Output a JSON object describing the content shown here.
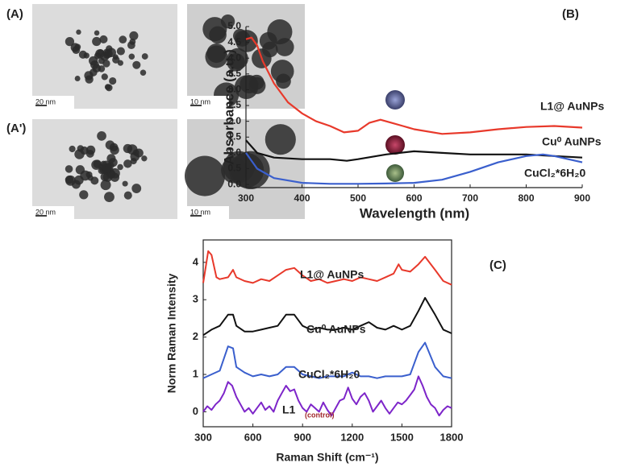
{
  "figure": {
    "labels": [
      "(A)",
      "(A')"
    ],
    "scale_bars": [
      "20 nm",
      "10 nm",
      "20 nm",
      "10 nm"
    ]
  },
  "chart_data": [
    {
      "type": "line",
      "panel_label": "(B)",
      "xlabel": "Wavelength (nm)",
      "ylabel": "Absorbance (a.u.)",
      "xlim": [
        300,
        900
      ],
      "ylim": [
        -0.1,
        5.0
      ],
      "xticks": [
        300,
        400,
        500,
        600,
        700,
        800,
        900
      ],
      "yticks": [
        {
          "value": 0,
          "label": "0.0"
        },
        {
          "value": 0.5,
          "label": "0.5"
        },
        {
          "value": 1,
          "label": "1.0"
        },
        {
          "value": 1.5,
          "label": "1.5"
        },
        {
          "value": 2,
          "label": "2.0"
        },
        {
          "value": 2.5,
          "label": "2.5"
        },
        {
          "value": 3,
          "label": "3.0"
        },
        {
          "value": 3.5,
          "label": "3.5"
        },
        {
          "value": 4,
          "label": "4.0"
        },
        {
          "value": 4.5,
          "label": "4.5"
        },
        {
          "value": 5,
          "label": "5.0"
        }
      ],
      "series": [
        {
          "name": "L1@ AuNPs",
          "color": "#e8392b",
          "x": [
            300,
            310,
            320,
            330,
            350,
            375,
            400,
            425,
            450,
            475,
            500,
            520,
            540,
            560,
            580,
            600,
            650,
            700,
            750,
            800,
            850,
            900
          ],
          "values": [
            4.6,
            4.65,
            4.4,
            3.9,
            3.2,
            2.6,
            2.25,
            2.0,
            1.85,
            1.65,
            1.7,
            1.95,
            2.05,
            1.95,
            1.85,
            1.75,
            1.6,
            1.65,
            1.75,
            1.82,
            1.85,
            1.8
          ]
        },
        {
          "name": "Cu⁰ AuNPs",
          "color": "#111111",
          "x": [
            300,
            320,
            350,
            400,
            450,
            480,
            500,
            550,
            600,
            650,
            700,
            750,
            800,
            850,
            900
          ],
          "values": [
            1.4,
            1.0,
            0.85,
            0.8,
            0.8,
            0.75,
            0.8,
            0.95,
            1.05,
            1.0,
            0.95,
            0.95,
            0.95,
            0.9,
            0.85
          ]
        },
        {
          "name": "CuCl₂*6H₂0",
          "color": "#3a5fcd",
          "x": [
            300,
            320,
            350,
            400,
            450,
            500,
            550,
            600,
            650,
            700,
            750,
            800,
            830,
            850,
            900
          ],
          "values": [
            1.0,
            0.5,
            0.2,
            0.05,
            0.02,
            0.02,
            0.03,
            0.05,
            0.15,
            0.4,
            0.7,
            0.9,
            0.95,
            0.9,
            0.7
          ]
        }
      ]
    },
    {
      "type": "line",
      "panel_label": "(C)",
      "xlabel": "Raman Shift (cm⁻¹)",
      "ylabel": "Norm Raman Intensity",
      "annotation": "(control)",
      "xlim": [
        300,
        1800
      ],
      "ylim": [
        -0.4,
        4.6
      ],
      "xticks": [
        300,
        600,
        900,
        1200,
        1500,
        1800
      ],
      "yticks": [
        0,
        1,
        2,
        3,
        4
      ],
      "series": [
        {
          "name": "L1@ AuNPs",
          "color": "#e8392b",
          "x": [
            300,
            330,
            350,
            380,
            400,
            450,
            480,
            500,
            550,
            600,
            650,
            700,
            750,
            800,
            850,
            900,
            950,
            1000,
            1050,
            1100,
            1150,
            1200,
            1250,
            1300,
            1350,
            1400,
            1450,
            1480,
            1500,
            1550,
            1600,
            1640,
            1700,
            1750,
            1800
          ],
          "values": [
            3.45,
            4.3,
            4.2,
            3.6,
            3.55,
            3.6,
            3.8,
            3.6,
            3.5,
            3.45,
            3.55,
            3.5,
            3.65,
            3.8,
            3.85,
            3.65,
            3.5,
            3.55,
            3.45,
            3.5,
            3.55,
            3.5,
            3.6,
            3.55,
            3.5,
            3.6,
            3.7,
            3.95,
            3.8,
            3.75,
            3.95,
            4.15,
            3.8,
            3.5,
            3.4
          ]
        },
        {
          "name": "Cu⁰ AuNPs",
          "color": "#111111",
          "x": [
            300,
            350,
            400,
            450,
            480,
            500,
            550,
            600,
            650,
            700,
            750,
            800,
            850,
            900,
            950,
            1000,
            1050,
            1100,
            1150,
            1200,
            1250,
            1300,
            1350,
            1400,
            1450,
            1500,
            1550,
            1600,
            1640,
            1700,
            1750,
            1800
          ],
          "values": [
            2.05,
            2.2,
            2.3,
            2.6,
            2.6,
            2.3,
            2.15,
            2.15,
            2.2,
            2.25,
            2.3,
            2.6,
            2.6,
            2.3,
            2.2,
            2.25,
            2.2,
            2.2,
            2.25,
            2.2,
            2.3,
            2.4,
            2.25,
            2.2,
            2.3,
            2.2,
            2.3,
            2.7,
            3.05,
            2.6,
            2.2,
            2.1
          ]
        },
        {
          "name": "CuCl₂*6H₂0",
          "color": "#3a5fcd",
          "x": [
            300,
            350,
            400,
            450,
            480,
            500,
            550,
            600,
            650,
            700,
            750,
            800,
            850,
            900,
            950,
            1000,
            1050,
            1100,
            1150,
            1200,
            1250,
            1300,
            1350,
            1400,
            1450,
            1500,
            1550,
            1600,
            1640,
            1700,
            1750,
            1800
          ],
          "values": [
            0.9,
            1.0,
            1.1,
            1.75,
            1.7,
            1.2,
            1.05,
            0.95,
            1.0,
            0.95,
            1.0,
            1.2,
            1.2,
            1.0,
            0.95,
            0.9,
            0.95,
            0.95,
            0.95,
            1.05,
            0.95,
            0.95,
            0.9,
            0.95,
            0.95,
            0.95,
            1.0,
            1.6,
            1.85,
            1.2,
            0.95,
            0.9
          ]
        },
        {
          "name": "L1",
          "color": "#7d25c9",
          "x": [
            300,
            325,
            350,
            375,
            400,
            425,
            450,
            475,
            500,
            525,
            550,
            575,
            600,
            625,
            650,
            675,
            700,
            725,
            750,
            775,
            800,
            825,
            850,
            875,
            900,
            925,
            950,
            975,
            1000,
            1025,
            1050,
            1075,
            1100,
            1125,
            1150,
            1175,
            1200,
            1225,
            1250,
            1275,
            1300,
            1325,
            1350,
            1375,
            1400,
            1425,
            1450,
            1475,
            1500,
            1525,
            1550,
            1575,
            1600,
            1625,
            1650,
            1675,
            1700,
            1725,
            1750,
            1775,
            1800
          ],
          "values": [
            0.0,
            0.15,
            0.05,
            0.2,
            0.3,
            0.5,
            0.8,
            0.7,
            0.4,
            0.2,
            0.0,
            0.1,
            -0.05,
            0.1,
            0.25,
            0.05,
            0.15,
            0.0,
            0.3,
            0.5,
            0.7,
            0.55,
            0.6,
            0.3,
            0.1,
            0.0,
            0.2,
            0.1,
            0.0,
            0.25,
            0.05,
            -0.1,
            0.1,
            0.3,
            0.35,
            0.65,
            0.35,
            0.2,
            0.4,
            0.5,
            0.3,
            0.0,
            0.15,
            0.3,
            0.1,
            -0.05,
            0.1,
            0.25,
            0.2,
            0.3,
            0.45,
            0.6,
            0.95,
            0.7,
            0.4,
            0.2,
            0.1,
            -0.1,
            0.05,
            0.15,
            0.1
          ]
        }
      ]
    }
  ]
}
